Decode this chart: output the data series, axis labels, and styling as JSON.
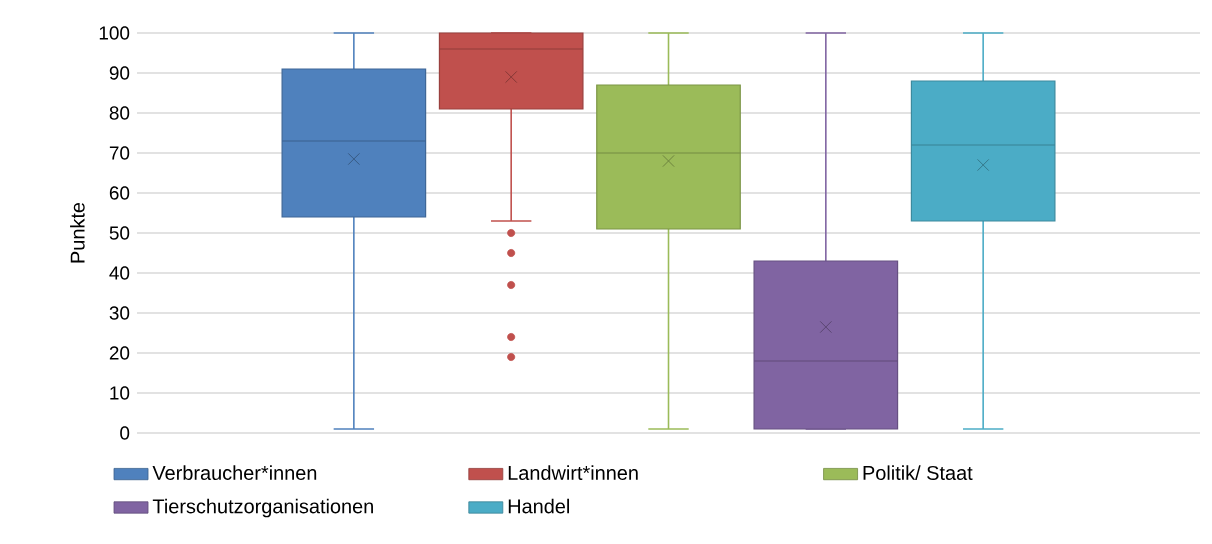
{
  "chart_data": {
    "type": "box",
    "ylabel": "Punkte",
    "categories": [
      null
    ],
    "ylim": [
      0,
      100
    ],
    "yticks": [
      0,
      10,
      20,
      30,
      40,
      50,
      60,
      70,
      80,
      90,
      100
    ],
    "grid": "y",
    "legend": "bottom",
    "series": [
      {
        "name": "Verbraucher*innen",
        "color": "#4f81bd",
        "boxes": [
          {
            "low": 1,
            "q1": 54,
            "median": 73,
            "q3": 91,
            "high": 100,
            "mean": 68.5
          }
        ]
      },
      {
        "name": "Landwirt*innen",
        "color": "#c0504d",
        "boxes": [
          {
            "low": 53,
            "q1": 81,
            "median": 96,
            "q3": 100,
            "high": 100,
            "mean": 89,
            "outliers": [
              50,
              45,
              37,
              24,
              19
            ]
          }
        ]
      },
      {
        "name": "Politik/ Staat",
        "color": "#9bbb59",
        "boxes": [
          {
            "low": 1,
            "q1": 51,
            "median": 70,
            "q3": 87,
            "high": 100,
            "mean": 68
          }
        ]
      },
      {
        "name": "Tierschutzorganisationen",
        "color": "#8064a2",
        "boxes": [
          {
            "low": 1,
            "q1": 1,
            "median": 18,
            "q3": 43,
            "high": 100,
            "mean": 26.5
          }
        ]
      },
      {
        "name": "Handel",
        "color": "#4bacc6",
        "boxes": [
          {
            "low": 1,
            "q1": 53,
            "median": 72,
            "q3": 88,
            "high": 100,
            "mean": 67
          }
        ]
      }
    ]
  }
}
